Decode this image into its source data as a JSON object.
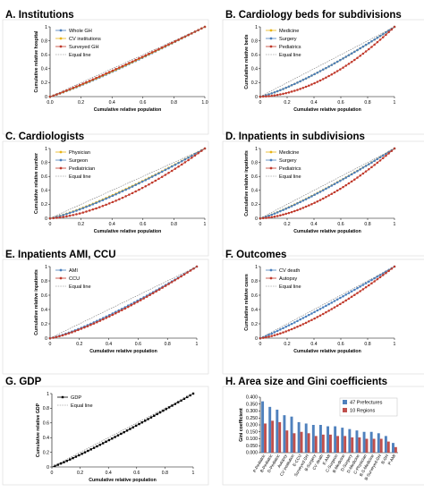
{
  "chart_data": [
    {
      "type": "line",
      "title": "A. Institutions",
      "xlabel": "Cumulative relative population",
      "ylabel": "Cumulative relative hospital",
      "xlim": [
        0,
        1
      ],
      "ylim": [
        0,
        1
      ],
      "xticks": [
        "0.0",
        "0.2",
        "0.4",
        "0.6",
        "0.8",
        "1.0"
      ],
      "yticks": [
        "0",
        "0.2",
        "0.4",
        "0.6",
        "0.8",
        "1"
      ],
      "legend": "top-left",
      "series": [
        {
          "name": "Whole GH",
          "color": "#4a7ebb",
          "marker": "circle",
          "curve": 0.88
        },
        {
          "name": "CV institutions",
          "color": "#e8b416",
          "marker": "circle",
          "curve": 0.9
        },
        {
          "name": "Surveyed GH",
          "color": "#c0392b",
          "marker": "circle",
          "curve": 0.92
        },
        {
          "name": "Equal line",
          "color": "#777777",
          "dashed": true,
          "curve": 1
        }
      ]
    },
    {
      "type": "line",
      "title": "B. Cardiology beds for subdivisions",
      "xlabel": "Cumulative relative population",
      "ylabel": "Cumulative relative beds",
      "xlim": [
        0,
        1
      ],
      "ylim": [
        0,
        1
      ],
      "xticks": [
        "0",
        "0.2",
        "0.4",
        "0.6",
        "0.8",
        "1"
      ],
      "yticks": [
        "0",
        "0.2",
        "0.4",
        "0.6",
        "0.8",
        "1"
      ],
      "legend": "top-left",
      "series": [
        {
          "name": "Medicine",
          "color": "#e8b416",
          "marker": "circle",
          "curve": 0.8
        },
        {
          "name": "Surgery",
          "color": "#4a7ebb",
          "marker": "circle",
          "curve": 0.8
        },
        {
          "name": "Pediatrics",
          "color": "#c0392b",
          "marker": "circle",
          "curve": 0.55
        },
        {
          "name": "Equal line",
          "color": "#777777",
          "dashed": true,
          "curve": 1
        }
      ]
    },
    {
      "type": "line",
      "title": "C. Cardiologists",
      "xlabel": "Cumulative relative population",
      "ylabel": "Cumulative relative number",
      "xlim": [
        0,
        1
      ],
      "ylim": [
        0,
        1
      ],
      "xticks": [
        "0",
        "0.2",
        "0.4",
        "0.6",
        "0.8",
        "1"
      ],
      "yticks": [
        "0",
        "0.2",
        "0.4",
        "0.6",
        "0.8",
        "1"
      ],
      "legend": "top-left",
      "series": [
        {
          "name": "Physician",
          "color": "#e8b416",
          "marker": "circle",
          "curve": 0.82
        },
        {
          "name": "Surgeon",
          "color": "#4a7ebb",
          "marker": "circle",
          "curve": 0.8
        },
        {
          "name": "Pediatrician",
          "color": "#c0392b",
          "marker": "circle",
          "curve": 0.62
        },
        {
          "name": "Equal line",
          "color": "#777777",
          "dashed": true,
          "curve": 1
        }
      ]
    },
    {
      "type": "line",
      "title": "D. Inpatients in subdivisions",
      "xlabel": "Cumulative relative population",
      "ylabel": "Cumulative relative inpatients",
      "xlim": [
        0,
        1
      ],
      "ylim": [
        0,
        1
      ],
      "xticks": [
        "0",
        "0.2",
        "0.4",
        "0.6",
        "0.8",
        "1"
      ],
      "yticks": [
        "0",
        "0.2",
        "0.4",
        "0.6",
        "0.8",
        "1"
      ],
      "legend": "top-left",
      "series": [
        {
          "name": "Medicine",
          "color": "#e8b416",
          "marker": "circle",
          "curve": 0.84
        },
        {
          "name": "Surgery",
          "color": "#4a7ebb",
          "marker": "circle",
          "curve": 0.83
        },
        {
          "name": "Pediatrics",
          "color": "#c0392b",
          "marker": "circle",
          "curve": 0.6
        },
        {
          "name": "Equal line",
          "color": "#777777",
          "dashed": true,
          "curve": 1
        }
      ]
    },
    {
      "type": "line",
      "title": "E. Inpatients AMI, CCU",
      "xlabel": "Cumulative relative population",
      "ylabel": "Cumulative relative inpatients",
      "xlim": [
        0,
        1
      ],
      "ylim": [
        0,
        1
      ],
      "xticks": [
        "0",
        "0.2",
        "0.4",
        "0.6",
        "0.8",
        "1"
      ],
      "yticks": [
        "0",
        "0.2",
        "0.4",
        "0.6",
        "0.8",
        "1"
      ],
      "legend": "top-left",
      "series": [
        {
          "name": "AMI",
          "color": "#4a7ebb",
          "marker": "circle",
          "curve": 0.8
        },
        {
          "name": "CCU",
          "color": "#c0392b",
          "marker": "circle",
          "curve": 0.76
        },
        {
          "name": "Equal line",
          "color": "#777777",
          "dashed": true,
          "curve": 1
        }
      ]
    },
    {
      "type": "line",
      "title": "F. Outcomes",
      "xlabel": "Cumulative relative population",
      "ylabel": "Cumulative relative cases",
      "xlim": [
        0,
        1
      ],
      "ylim": [
        0,
        1
      ],
      "xticks": [
        "0",
        "0.2",
        "0.4",
        "0.6",
        "0.8",
        "1"
      ],
      "yticks": [
        "0",
        "0.2",
        "0.4",
        "0.6",
        "0.8",
        "1"
      ],
      "legend": "top-left",
      "series": [
        {
          "name": "CV death",
          "color": "#4a7ebb",
          "marker": "circle",
          "curve": 0.9
        },
        {
          "name": "Autopsy",
          "color": "#c0392b",
          "marker": "circle",
          "curve": 0.7
        },
        {
          "name": "Equal line",
          "color": "#777777",
          "dashed": true,
          "curve": 1
        }
      ]
    },
    {
      "type": "line",
      "title": "G. GDP",
      "xlabel": "Cumulative relative population",
      "ylabel": "Cumulative relative GDP",
      "xlim": [
        0,
        1
      ],
      "ylim": [
        0,
        1
      ],
      "xticks": [
        "0",
        "0.2",
        "0.4",
        "0.6",
        "0.8",
        "1"
      ],
      "yticks": [
        "0",
        "0.2",
        "0.4",
        "0.6",
        "0.8",
        "1"
      ],
      "legend": "top-left",
      "series": [
        {
          "name": "GDP",
          "color": "#000000",
          "marker": "square",
          "curve": 0.9,
          "solid": true
        },
        {
          "name": "Equal line",
          "color": "#777777",
          "dashed": true,
          "curve": 1
        }
      ]
    },
    {
      "type": "bar",
      "title": "H. Area size and Gini coefficients",
      "ylabel": "Gini coefficient",
      "ylim": [
        0,
        0.4
      ],
      "yticks": [
        "0.000",
        "0.050",
        "0.100",
        "0.150",
        "0.200",
        "0.250",
        "0.300",
        "0.350",
        "0.400"
      ],
      "legend": "top-right",
      "categories": [
        "P-Pediatric",
        "B-Pediatric",
        "D-Pediatric",
        "Autopsy",
        "CV institution",
        "E-CCU",
        "Surveyed GH",
        "B-Surgery",
        "CV death",
        "E-AMI",
        "C-Surgeon",
        "B-Medicine",
        "D-Surgery",
        "D-Medicine",
        "C-Physician",
        "B-S-Medicine",
        "B-Surveyed-GH",
        "B-GH",
        "P-AMI"
      ],
      "series": [
        {
          "name": "47 Prefectures",
          "color": "#4f81bd",
          "values": [
            0.37,
            0.33,
            0.31,
            0.27,
            0.26,
            0.22,
            0.21,
            0.2,
            0.2,
            0.19,
            0.19,
            0.18,
            0.17,
            0.16,
            0.15,
            0.15,
            0.14,
            0.12,
            0.07
          ]
        },
        {
          "name": "10 Regions",
          "color": "#c0504d",
          "values": [
            0.21,
            0.23,
            0.22,
            0.16,
            0.14,
            0.15,
            0.14,
            0.12,
            0.13,
            0.13,
            0.12,
            0.12,
            0.11,
            0.11,
            0.1,
            0.1,
            0.1,
            0.08,
            0.04
          ]
        }
      ]
    }
  ]
}
